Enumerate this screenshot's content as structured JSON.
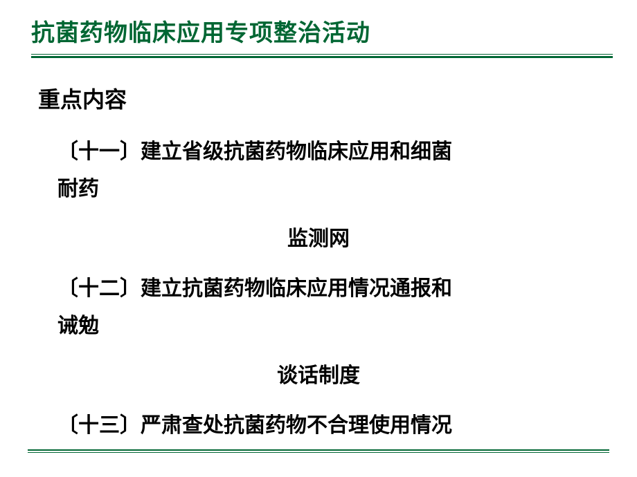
{
  "slide": {
    "title": "抗菌药物临床应用专项整治活动",
    "section_heading": "重点内容",
    "items": [
      {
        "prefix": "〔十一〕",
        "text_line1": "建立省级抗菌药物临床应用和细菌",
        "text_line2": "耐药",
        "continuation": "监测网"
      },
      {
        "prefix": "〔十二〕",
        "text_line1": "建立抗菌药物临床应用情况通报和",
        "text_line2": "诫勉",
        "continuation": "谈话制度"
      },
      {
        "prefix": "〔十三〕",
        "text_line1": "严肃查处抗菌药物不合理使用情况",
        "text_line2": "",
        "continuation": ""
      }
    ],
    "colors": {
      "title_color": "#006633",
      "text_color": "#000000",
      "line_color": "#006633",
      "background": "#ffffff"
    }
  }
}
